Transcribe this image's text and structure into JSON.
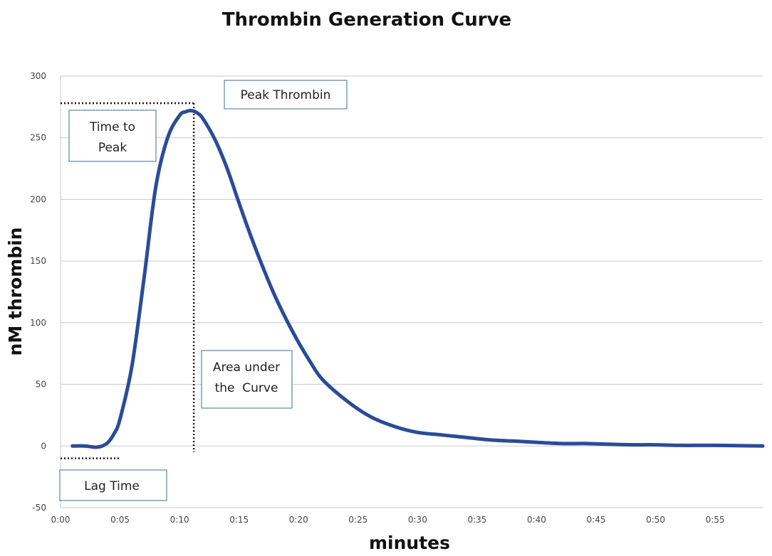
{
  "chart_data": {
    "type": "line",
    "title": "Thrombin Generation Curve",
    "xlabel": "minutes",
    "ylabel": "nM thrombin",
    "xlim": [
      0,
      59
    ],
    "ylim": [
      -50,
      300
    ],
    "x_ticks": [
      "0:00",
      "0:05",
      "0:10",
      "0:15",
      "0:20",
      "0:25",
      "0:30",
      "0:35",
      "0:40",
      "0:45",
      "0:50",
      "0:55"
    ],
    "y_ticks": [
      300,
      250,
      200,
      150,
      100,
      50,
      0,
      -50
    ],
    "grid": true,
    "series": [
      {
        "name": "thrombin",
        "color": "#2a4c97",
        "x": [
          1,
          2,
          3,
          3.5,
          4,
          4.5,
          5,
          6,
          7,
          8,
          9,
          10,
          10.5,
          11,
          11.5,
          12,
          13,
          14,
          15,
          16,
          17,
          18,
          19,
          20,
          21,
          22,
          24,
          26,
          28,
          30,
          32,
          34,
          36,
          38,
          40,
          42,
          44,
          46,
          48,
          50,
          52,
          55,
          59
        ],
        "values": [
          0,
          0,
          -1,
          0,
          3,
          10,
          22,
          65,
          135,
          210,
          250,
          268,
          271,
          272,
          270,
          265,
          248,
          225,
          197,
          170,
          145,
          122,
          102,
          84,
          68,
          54,
          37,
          24,
          16,
          11,
          9,
          7,
          5,
          4,
          3,
          2,
          2,
          1.5,
          1,
          1,
          0.5,
          0.5,
          0
        ]
      }
    ],
    "annotations": [
      {
        "name": "peak-thrombin",
        "text": "Peak Thrombin",
        "guide_y": 278
      },
      {
        "name": "time-to-peak",
        "lines": [
          "Time to",
          "Peak"
        ],
        "guide_x": 11.2
      },
      {
        "name": "area-under-curve",
        "lines": [
          "Area under",
          "the  Curve"
        ]
      },
      {
        "name": "lag-time",
        "text": "Lag Time",
        "guide_y": -10,
        "guide_x_end": 5
      }
    ]
  }
}
